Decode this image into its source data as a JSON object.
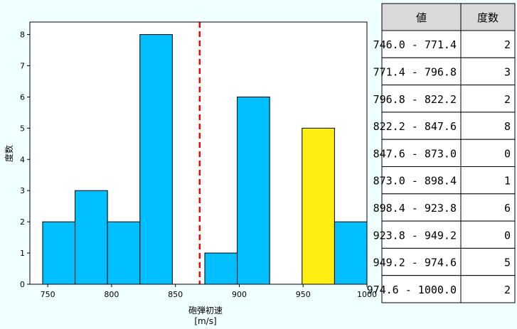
{
  "chart_data": {
    "type": "bar",
    "xlabel": "砲弾初速",
    "xlabel_unit": "[m/s]",
    "ylabel": "度数",
    "xlim": [
      736,
      1000
    ],
    "ylim": [
      0,
      8.4
    ],
    "xticks": [
      750,
      800,
      850,
      900,
      950,
      1000
    ],
    "yticks": [
      0,
      1,
      2,
      3,
      4,
      5,
      6,
      7,
      8
    ],
    "bin_edges": [
      746.0,
      771.4,
      796.8,
      822.2,
      847.6,
      873.0,
      898.4,
      923.8,
      949.2,
      974.6,
      1000.0
    ],
    "values": [
      2,
      3,
      2,
      8,
      0,
      1,
      6,
      0,
      5,
      2
    ],
    "bar_color": "#00bfff",
    "highlight_bin": 8,
    "highlight_color": "#ffee11",
    "reference_line": {
      "x": 869,
      "color": "#ff0000",
      "style": "dashed"
    },
    "grid": false
  },
  "table": {
    "headers": [
      "値",
      "度数"
    ],
    "rows": [
      [
        "746.0 - 771.4",
        "2"
      ],
      [
        "771.4 - 796.8",
        "3"
      ],
      [
        "796.8 - 822.2",
        "2"
      ],
      [
        "822.2 - 847.6",
        "8"
      ],
      [
        "847.6 - 873.0",
        "0"
      ],
      [
        "873.0 - 898.4",
        "1"
      ],
      [
        "898.4 - 923.8",
        "6"
      ],
      [
        "923.8 - 949.2",
        "0"
      ],
      [
        "949.2 - 974.6",
        "5"
      ],
      [
        "974.6 - 1000.0",
        "2"
      ]
    ],
    "header_bg": "#d9d9d9",
    "cell_bg": "#ffffff"
  }
}
